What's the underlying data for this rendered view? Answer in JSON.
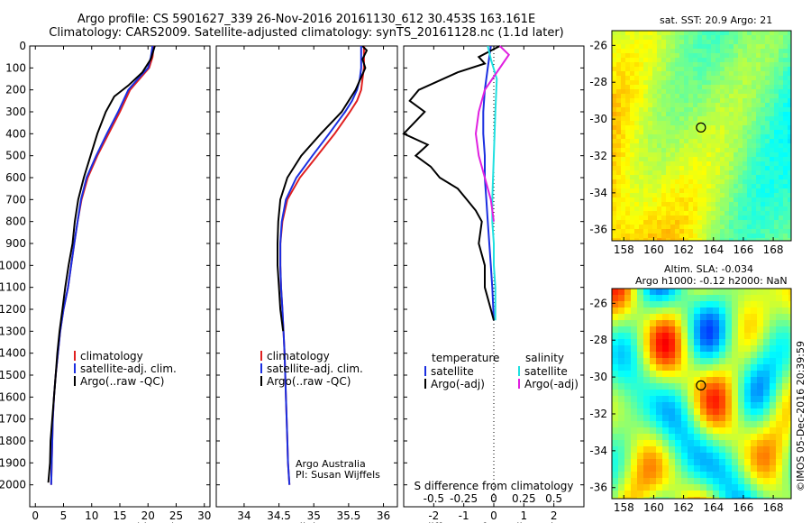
{
  "title_line1": "Argo profile: CS 5901627_339 26-Nov-2016 20161130_612 30.453S 163.161E",
  "title_line2": "Climatology: CARS2009. Satellite-adjusted climatology: synTS_20161128.nc (1.1d later)",
  "map_sst_title": "sat. SST: 20.9 Argo: 21",
  "map_sla_title1": "Altim. SLA: -0.034",
  "map_sla_title2": "Argo h1000: -0.12 h2000: NaN",
  "credit": "©IMOS 05-Dec-2016 20:39:59",
  "colors": {
    "climatology": "#e02020",
    "satellite": "#1a2ee0",
    "argo": "#000000",
    "salinity_sat": "#20e0e0",
    "salinity_argo": "#e020e0"
  },
  "chart_data": [
    {
      "type": "line",
      "xlabel": "temperature (deg C)",
      "ylabel": "",
      "xlim": [
        -1,
        31
      ],
      "ylim": [
        2100,
        0
      ],
      "xticks": [
        0,
        5,
        10,
        15,
        20,
        25,
        30
      ],
      "yticks": [
        0,
        100,
        200,
        300,
        400,
        500,
        600,
        700,
        800,
        900,
        1000,
        1100,
        1200,
        1300,
        1400,
        1500,
        1600,
        1700,
        1800,
        1900,
        2000
      ],
      "legend": [
        "climatology",
        "satellite-adj. clim.",
        "Argo(..raw -QC)"
      ],
      "legend_position": "bottom-center",
      "series": [
        {
          "name": "climatology",
          "color": "#e02020",
          "x": [
            21,
            20.8,
            20.2,
            18.5,
            16.8,
            15,
            13,
            11,
            9.3,
            8.2,
            7.5,
            6.9,
            5.8,
            5,
            4.4,
            4,
            3.6,
            3.3,
            3.1,
            2.8
          ],
          "y": [
            0,
            50,
            100,
            150,
            200,
            300,
            400,
            500,
            600,
            700,
            800,
            900,
            1100,
            1200,
            1300,
            1400,
            1500,
            1600,
            1700,
            2000
          ]
        },
        {
          "name": "satellite-adj. clim.",
          "color": "#1a2ee0",
          "x": [
            20.8,
            20.5,
            20,
            18.2,
            16.5,
            14.7,
            12.7,
            10.8,
            9.1,
            8.1,
            7.5,
            6.9,
            5.8,
            5,
            4.4,
            4,
            3.6,
            3.3,
            3.1,
            2.8
          ],
          "y": [
            0,
            50,
            100,
            150,
            200,
            300,
            400,
            500,
            600,
            700,
            800,
            900,
            1100,
            1200,
            1300,
            1400,
            1500,
            1600,
            1700,
            2000
          ]
        },
        {
          "name": "Argo(..raw -QC)",
          "color": "#000000",
          "x": [
            21.2,
            20.5,
            19,
            16.5,
            14,
            12.5,
            11,
            9.8,
            8.6,
            7.6,
            7,
            6.6,
            5.9,
            5.3,
            4.8,
            4.3,
            3.9,
            3.6,
            3.3,
            3,
            2.7,
            2.6,
            2.3
          ],
          "y": [
            0,
            60,
            120,
            180,
            230,
            300,
            400,
            500,
            600,
            700,
            800,
            900,
            1000,
            1100,
            1200,
            1300,
            1400,
            1500,
            1600,
            1700,
            1800,
            1900,
            1990
          ]
        }
      ]
    },
    {
      "type": "line",
      "xlabel": "salinity",
      "ylabel": "",
      "xlim": [
        33.6,
        36.2
      ],
      "ylim": [
        2100,
        0
      ],
      "xticks": [
        34,
        34.5,
        35,
        35.5,
        36
      ],
      "legend": [
        "climatology",
        "satellite-adj. clim.",
        "Argo(..raw -QC)"
      ],
      "legend_position": "bottom-center",
      "annotation": [
        "Argo Australia",
        "PI: Susan Wijffels"
      ],
      "series": [
        {
          "name": "climatology",
          "color": "#e02020",
          "x": [
            35.72,
            35.72,
            35.7,
            35.68,
            35.62,
            35.52,
            35.3,
            35.05,
            34.8,
            34.62,
            34.55,
            34.52,
            34.52,
            34.53,
            34.55,
            34.58,
            34.6,
            34.62,
            34.63,
            34.65
          ],
          "y": [
            0,
            100,
            150,
            200,
            250,
            300,
            400,
            500,
            600,
            700,
            800,
            900,
            1000,
            1100,
            1200,
            1400,
            1600,
            1800,
            1900,
            2000
          ]
        },
        {
          "name": "satellite-adj. clim.",
          "color": "#1a2ee0",
          "x": [
            35.68,
            35.68,
            35.66,
            35.62,
            35.55,
            35.45,
            35.22,
            34.98,
            34.75,
            34.6,
            34.54,
            34.52,
            34.52,
            34.53,
            34.55,
            34.58,
            34.6,
            34.62,
            34.63,
            34.65
          ],
          "y": [
            0,
            100,
            150,
            200,
            250,
            300,
            400,
            500,
            600,
            700,
            800,
            900,
            1000,
            1100,
            1200,
            1400,
            1600,
            1800,
            1900,
            2000
          ]
        },
        {
          "name": "Argo(..raw -QC)",
          "color": "#000000",
          "x": [
            35.7,
            35.76,
            35.7,
            35.74,
            35.6,
            35.4,
            35.1,
            34.82,
            34.62,
            34.52,
            34.49,
            34.48,
            34.48,
            34.5,
            34.52,
            34.56
          ],
          "y": [
            0,
            20,
            60,
            100,
            200,
            300,
            400,
            500,
            600,
            700,
            800,
            900,
            1000,
            1100,
            1200,
            1300
          ]
        }
      ]
    },
    {
      "type": "line",
      "xlabel": "T difference from climatology",
      "xlabel_top": "S difference from climatology",
      "ylabel": "",
      "xlim": [
        -3,
        3
      ],
      "ylim": [
        2100,
        0
      ],
      "xticks": [
        -2,
        -1,
        0,
        1,
        2
      ],
      "xticks_top": [
        -0.5,
        -0.25,
        0,
        0.25,
        0.5
      ],
      "xticks_top_labels": [
        "-0.5",
        "-0.25",
        "0",
        "0.25",
        "0.5"
      ],
      "zero_line": "dotted",
      "legend_headers": [
        "temperature",
        "salinity"
      ],
      "legend": [
        "satellite",
        "Argo(-adj)",
        "satellite",
        "Argo(-adj)"
      ],
      "legend_position": "bottom",
      "series": [
        {
          "name": "satellite",
          "group": "temperature",
          "color": "#1a2ee0",
          "x": [
            -0.1,
            -0.2,
            -0.3,
            -0.35,
            -0.35,
            -0.3,
            -0.3,
            -0.25,
            -0.2,
            -0.15,
            -0.1,
            -0.05,
            0
          ],
          "y": [
            0,
            100,
            200,
            300,
            400,
            500,
            600,
            700,
            800,
            900,
            1000,
            1100,
            1250
          ]
        },
        {
          "name": "Argo(-adj)",
          "group": "temperature",
          "color": "#000000",
          "x": [
            0.2,
            -0.5,
            -0.3,
            -1.2,
            -2.5,
            -2.8,
            -2.3,
            -3,
            -2.2,
            -2.6,
            -2.1,
            -1.8,
            -1.2,
            -0.9,
            -0.6,
            -0.4,
            -0.5,
            -0.3,
            -0.3,
            -0.1,
            0
          ],
          "y": [
            0,
            50,
            80,
            120,
            200,
            250,
            300,
            400,
            450,
            500,
            550,
            600,
            650,
            700,
            750,
            800,
            900,
            1000,
            1100,
            1200,
            1250
          ]
        },
        {
          "name": "satellite",
          "group": "salinity",
          "color": "#20e0e0",
          "x": [
            -0.2,
            -0.1,
            0.1,
            0.05,
            0,
            -0.05,
            -0.05,
            0,
            0,
            0.05,
            0.05
          ],
          "y": [
            0,
            60,
            150,
            300,
            500,
            700,
            800,
            900,
            1000,
            1100,
            1250
          ]
        },
        {
          "name": "Argo(-adj)",
          "group": "salinity",
          "color": "#e020e0",
          "x": [
            0.2,
            0.5,
            0.3,
            -0.3,
            -0.5,
            -0.6,
            -0.5,
            -0.3,
            -0.1,
            0
          ],
          "y": [
            0,
            40,
            80,
            200,
            300,
            400,
            500,
            600,
            700,
            800
          ]
        }
      ]
    },
    {
      "type": "heatmap",
      "title": "sat. SST: 20.9 Argo: 21",
      "xlim": [
        157.2,
        169.2
      ],
      "ylim": [
        -36.6,
        -25.2
      ],
      "xticks": [
        158,
        160,
        162,
        164,
        166,
        168
      ],
      "yticks": [
        -26,
        -28,
        -30,
        -32,
        -34,
        -36
      ],
      "marker": {
        "lon": 163.161,
        "lat": -30.453,
        "style": "open circle"
      }
    },
    {
      "type": "heatmap",
      "title": "Altim. SLA: -0.034",
      "subtitle": "Argo h1000: -0.12 h2000: NaN",
      "xlim": [
        157.2,
        169.2
      ],
      "ylim": [
        -36.6,
        -25.2
      ],
      "xticks": [
        158,
        160,
        162,
        164,
        166,
        168
      ],
      "yticks": [
        -26,
        -28,
        -30,
        -32,
        -34,
        -36
      ],
      "marker": {
        "lon": 163.161,
        "lat": -30.453,
        "style": "open circle"
      }
    }
  ]
}
